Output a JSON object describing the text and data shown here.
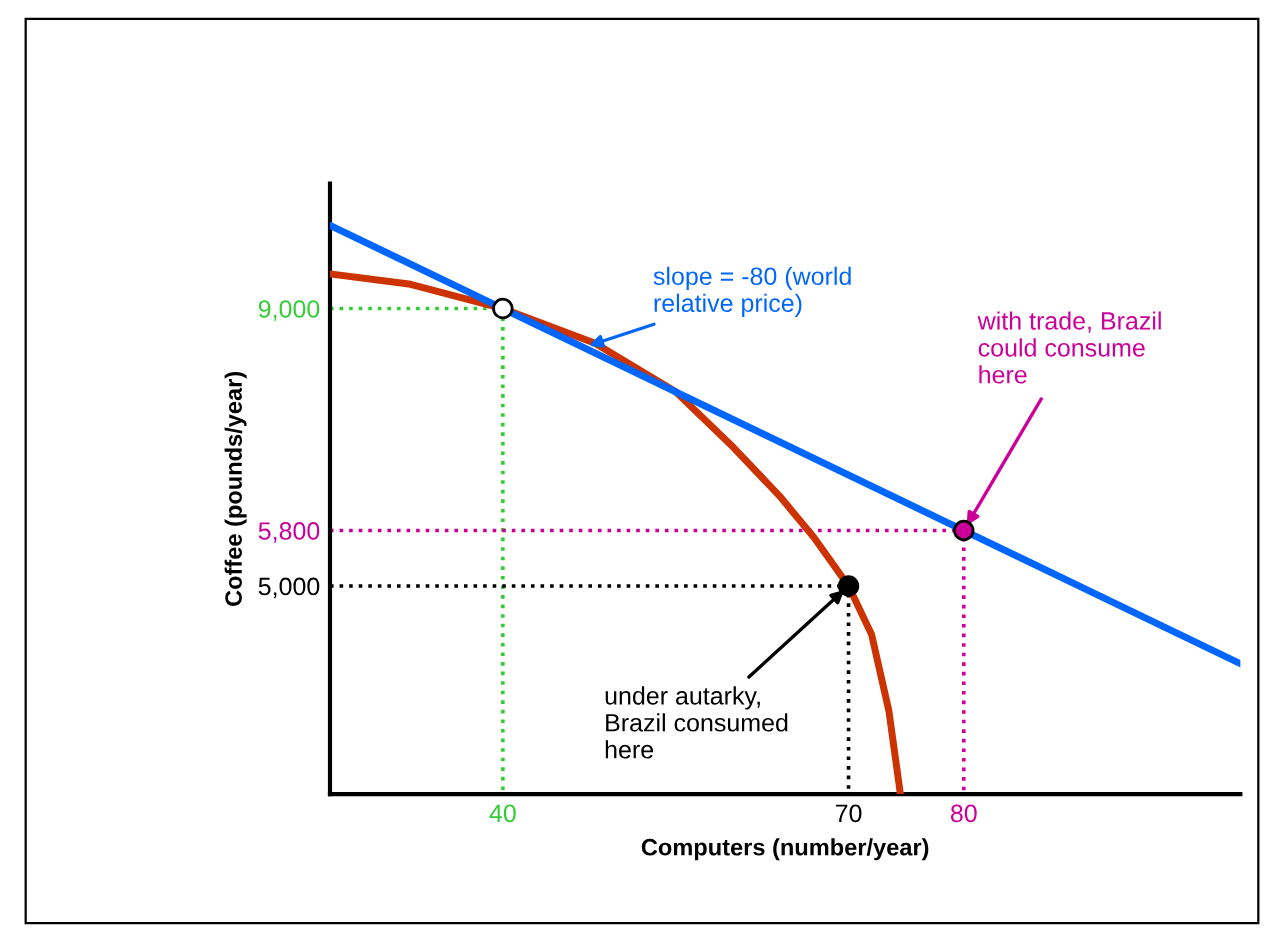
{
  "chart_data": {
    "type": "line",
    "xlabel": "Computers (number/year)",
    "ylabel": "Coffee (pounds/year)",
    "xlim": [
      25,
      104
    ],
    "ylim": [
      2000,
      10800
    ],
    "xticks": [
      40,
      70,
      80
    ],
    "yticks": [
      {
        "value": 5000,
        "label": "5,000"
      },
      {
        "value": 5800,
        "label": "5,800"
      },
      {
        "value": 9000,
        "label": "9,000"
      }
    ],
    "grid": false,
    "series": [
      {
        "color": "#cc3300",
        "x": [
          25,
          32,
          40,
          48,
          55,
          60,
          64,
          67,
          70,
          72,
          73.5,
          74.5
        ],
        "values": [
          9500,
          9350,
          9000,
          8500,
          7800,
          7000,
          6300,
          5700,
          5000,
          4300,
          3200,
          2000
        ]
      },
      {
        "color": "#0066ff",
        "x": [
          25,
          104
        ],
        "values": [
          10200,
          3880
        ]
      },
      {
        "color": "#33cc33",
        "line_style": "dotted",
        "x": [
          25,
          40,
          40
        ],
        "values": [
          9000,
          9000,
          2000
        ]
      },
      {
        "color": "#cc0099",
        "line_style": "dotted",
        "x": [
          25,
          80,
          80
        ],
        "values": [
          5800,
          5800,
          2000
        ]
      },
      {
        "color": "#000000",
        "line_style": "dotted",
        "x": [
          25,
          70,
          70
        ],
        "values": [
          5000,
          5000,
          2000
        ]
      },
      {
        "type": "scatter",
        "color": "#000000",
        "x": [
          70
        ],
        "values": [
          5000
        ],
        "marker": "circle"
      },
      {
        "type": "scatter",
        "color": "#cc0099",
        "x": [
          80
        ],
        "values": [
          5800
        ],
        "marker": "circle"
      },
      {
        "type": "scatter",
        "color": "#ffffff",
        "x": [
          40
        ],
        "values": [
          9000
        ],
        "marker": "circle"
      }
    ],
    "annotations": [
      {
        "text": "slope = -80 (world\nrelative price)",
        "x": 47,
        "y": 8440
      },
      {
        "text": "with trade, Brazil\ncould consume\nhere",
        "x": 80,
        "y": 5800
      },
      {
        "text": "under autarky,\nBrazil consumed\nhere",
        "x": 70,
        "y": 5000
      }
    ]
  }
}
